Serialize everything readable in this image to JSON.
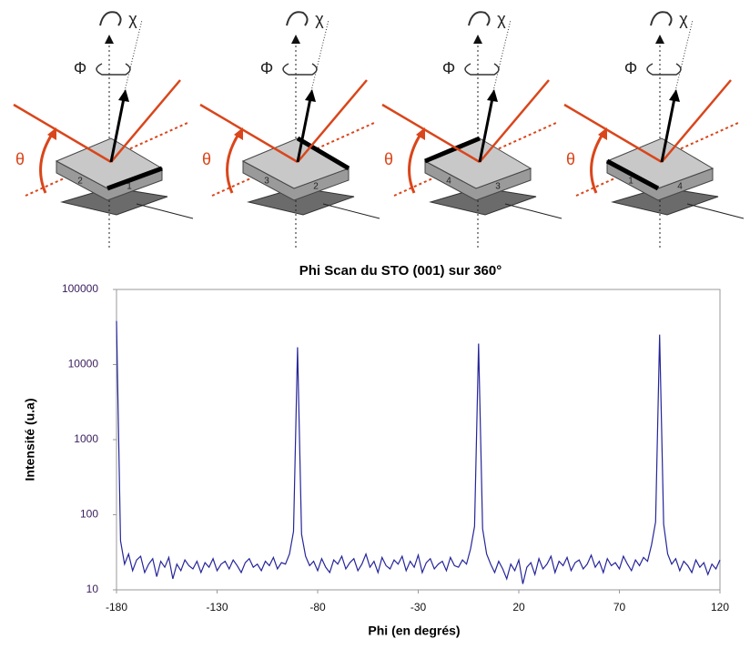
{
  "diagrams": [
    {
      "theta": "θ",
      "phi": "Φ",
      "chi": "χ",
      "corner_left": "2",
      "corner_front": "1"
    },
    {
      "theta": "θ",
      "phi": "Φ",
      "chi": "χ",
      "corner_left": "3",
      "corner_front": "2"
    },
    {
      "theta": "θ",
      "phi": "Φ",
      "chi": "χ",
      "corner_left": "4",
      "corner_front": "3"
    },
    {
      "theta": "θ",
      "phi": "Φ",
      "chi": "χ",
      "corner_left": "1",
      "corner_front": "4"
    }
  ],
  "chart_data": {
    "type": "line",
    "title": "Phi Scan du STO (001) sur 360°",
    "x_label": "Phi (en degrés)",
    "y_label": "Intensité (u.a)",
    "color": "#25259a",
    "y_log": true,
    "grid": false,
    "xlim": [
      -180,
      120
    ],
    "xticks": [
      -180,
      -130,
      -80,
      -30,
      20,
      70,
      120
    ],
    "ylim": [
      10,
      100000
    ],
    "yticks": [
      10,
      100,
      1000,
      10000,
      100000
    ],
    "x": [
      -180,
      -178,
      -176,
      -174,
      -172,
      -170,
      -168,
      -166,
      -164,
      -162,
      -160,
      -158,
      -156,
      -154,
      -152,
      -150,
      -148,
      -146,
      -144,
      -142,
      -140,
      -138,
      -136,
      -134,
      -132,
      -130,
      -128,
      -126,
      -124,
      -122,
      -120,
      -118,
      -116,
      -114,
      -112,
      -110,
      -108,
      -106,
      -104,
      -102,
      -100,
      -98,
      -96,
      -94,
      -92,
      -90,
      -88,
      -86,
      -84,
      -82,
      -80,
      -78,
      -76,
      -74,
      -72,
      -70,
      -68,
      -66,
      -64,
      -62,
      -60,
      -58,
      -56,
      -54,
      -52,
      -50,
      -48,
      -46,
      -44,
      -42,
      -40,
      -38,
      -36,
      -34,
      -32,
      -30,
      -28,
      -26,
      -24,
      -22,
      -20,
      -18,
      -16,
      -14,
      -12,
      -10,
      -8,
      -6,
      -4,
      -2,
      0,
      2,
      4,
      6,
      8,
      10,
      12,
      14,
      16,
      18,
      20,
      22,
      24,
      26,
      28,
      30,
      32,
      34,
      36,
      38,
      40,
      42,
      44,
      46,
      48,
      50,
      52,
      54,
      56,
      58,
      60,
      62,
      64,
      66,
      68,
      70,
      72,
      74,
      76,
      78,
      80,
      82,
      84,
      86,
      88,
      90,
      92,
      94,
      96,
      98,
      100,
      102,
      104,
      106,
      108,
      110,
      112,
      114,
      116,
      118,
      120
    ],
    "values": [
      38000,
      45,
      22,
      30,
      18,
      25,
      28,
      17,
      22,
      26,
      15,
      24,
      20,
      27,
      14,
      22,
      18,
      25,
      21,
      19,
      24,
      17,
      23,
      20,
      26,
      18,
      22,
      24,
      19,
      25,
      21,
      17,
      23,
      26,
      20,
      22,
      18,
      24,
      21,
      27,
      19,
      23,
      22,
      30,
      60,
      17000,
      55,
      28,
      21,
      24,
      18,
      26,
      20,
      17,
      25,
      22,
      28,
      19,
      23,
      26,
      18,
      22,
      30,
      20,
      24,
      17,
      27,
      21,
      19,
      25,
      22,
      28,
      18,
      24,
      20,
      29,
      17,
      23,
      26,
      19,
      22,
      24,
      18,
      27,
      21,
      20,
      25,
      22,
      35,
      70,
      19000,
      65,
      30,
      22,
      17,
      24,
      19,
      14,
      22,
      18,
      25,
      12,
      20,
      23,
      16,
      26,
      19,
      22,
      28,
      17,
      24,
      21,
      27,
      18,
      23,
      25,
      19,
      22,
      29,
      20,
      24,
      17,
      26,
      21,
      23,
      19,
      28,
      22,
      18,
      25,
      21,
      27,
      24,
      40,
      80,
      25000,
      75,
      30,
      22,
      26,
      18,
      24,
      21,
      17,
      25,
      20,
      23,
      16,
      22,
      19,
      25
    ]
  }
}
